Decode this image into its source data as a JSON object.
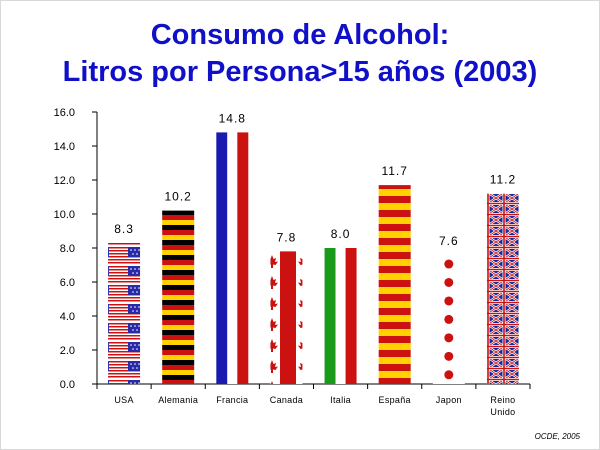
{
  "chart_data": {
    "type": "bar",
    "title": "Consumo de Alcohol:",
    "subtitle": "Litros por Persona>15 años (2003)",
    "categories": [
      "USA",
      "Alemania",
      "Francia",
      "Canada",
      "Italia",
      "España",
      "Japon",
      "Reino Unido"
    ],
    "category_lines": [
      [
        "USA"
      ],
      [
        "Alemania"
      ],
      [
        "Francia"
      ],
      [
        "Canada"
      ],
      [
        "Italia"
      ],
      [
        "España"
      ],
      [
        "Japon"
      ],
      [
        "Reino",
        "Unido"
      ]
    ],
    "values": [
      8.3,
      10.2,
      14.8,
      7.8,
      8.0,
      11.7,
      7.6,
      11.2
    ],
    "data_labels": [
      "8.3",
      "10.2",
      "14.8",
      "7.8",
      "8.0",
      "11.7",
      "7.6",
      "11.2"
    ],
    "bar_styles": [
      "usa-flag",
      "germany-flag",
      "france-flag",
      "canada-flag",
      "italy-flag",
      "spain-flag",
      "japan-flag",
      "uk-flag"
    ],
    "ylim": [
      0,
      16
    ],
    "yticks": [
      "0.0",
      "2.0",
      "4.0",
      "6.0",
      "8.0",
      "10.0",
      "12.0",
      "14.0",
      "16.0"
    ],
    "xlabel": "",
    "ylabel": "",
    "grid": false,
    "legend": "none"
  },
  "source_note": "OCDE, 2005",
  "colors": {
    "title": "#1010c8",
    "red": "#cc1111",
    "blue": "#1a1ab0",
    "yellow": "#ffd200",
    "black": "#000000",
    "green": "#1a9a1a"
  }
}
